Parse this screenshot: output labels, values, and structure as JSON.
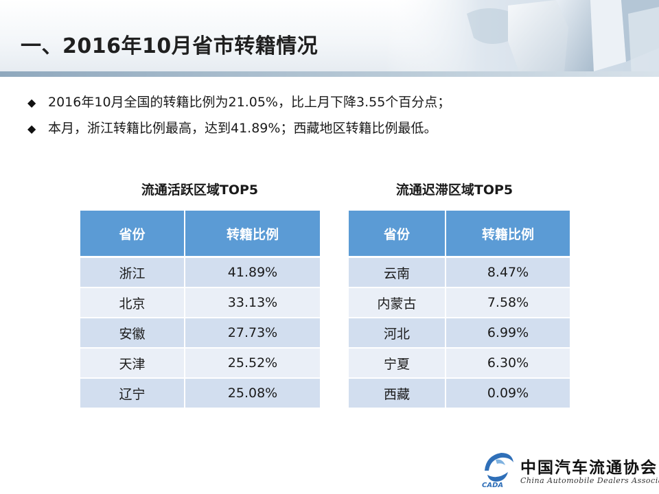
{
  "title": "一、2016年10月省市转籍情况",
  "bullets": [
    "2016年10月全国的转籍比例为21.05%，比上月下降3.55个百分点；",
    "本月，浙江转籍比例最高，达到41.89%；西藏地区转籍比例最低。"
  ],
  "bullet_icon": "diamond-bullet-icon",
  "tables": [
    {
      "title": "流通活跃区域TOP5",
      "headers": [
        "省份",
        "转籍比例"
      ],
      "rows": [
        [
          "浙江",
          "41.89%"
        ],
        [
          "北京",
          "33.13%"
        ],
        [
          "安徽",
          "27.73%"
        ],
        [
          "天津",
          "25.52%"
        ],
        [
          "辽宁",
          "25.08%"
        ]
      ]
    },
    {
      "title": "流通迟滞区域TOP5",
      "headers": [
        "省份",
        "转籍比例"
      ],
      "rows": [
        [
          "云南",
          "8.47%"
        ],
        [
          "内蒙古",
          "7.58%"
        ],
        [
          "河北",
          "6.99%"
        ],
        [
          "宁夏",
          "6.30%"
        ],
        [
          "西藏",
          "0.09%"
        ]
      ]
    }
  ],
  "logo": {
    "name_cn": "中国汽车流通协会",
    "name_en": "China Automobile Dealers Association",
    "abbr": "CADA"
  },
  "colors": {
    "table_header": "#5b9bd5",
    "row_odd": "#d2deef",
    "row_even": "#eaeff7",
    "logo_blue": "#2f6fb8"
  }
}
